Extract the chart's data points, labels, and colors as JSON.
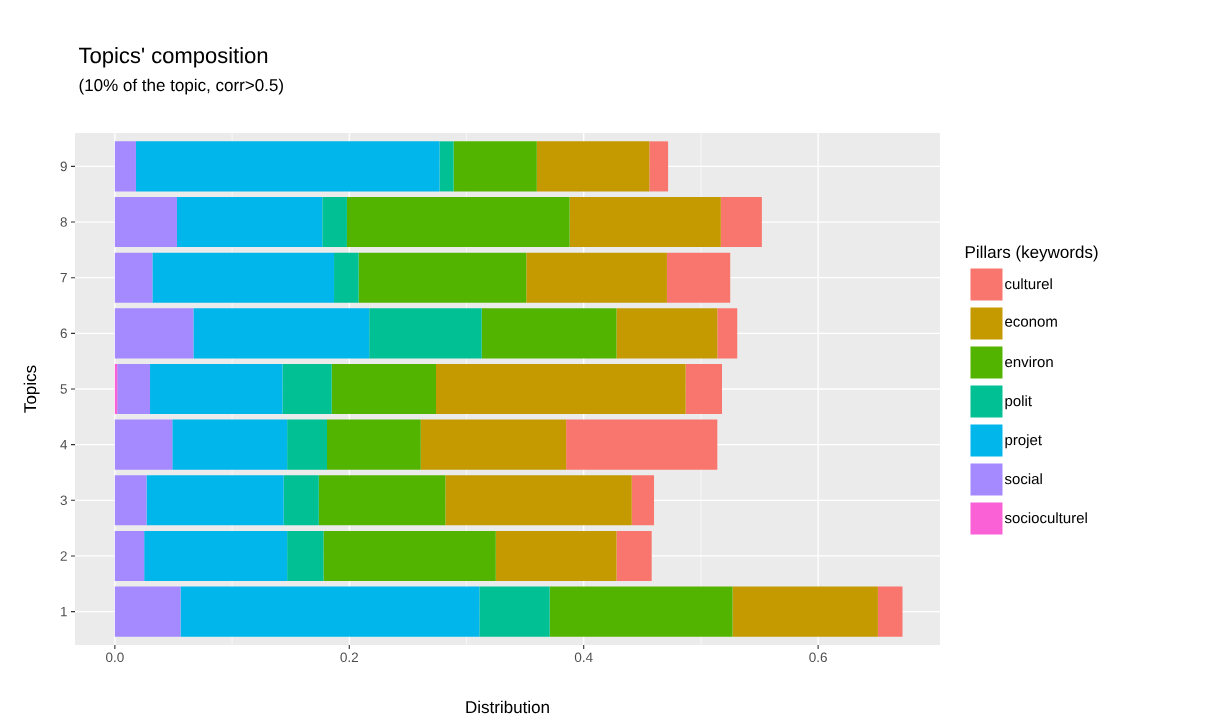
{
  "chart_data": {
    "type": "bar",
    "orientation": "horizontal",
    "stacked": true,
    "title": "Topics' composition",
    "subtitle": "(10% of the topic, corr>0.5)",
    "xlabel": "Distribution",
    "ylabel": "Topics",
    "legend_title": "Pillars (keywords)",
    "categories": [
      "9",
      "8",
      "7",
      "6",
      "5",
      "4",
      "3",
      "2",
      "1"
    ],
    "series": [
      {
        "name": "socioculturel",
        "color": "#fb61d7",
        "values": [
          0,
          0,
          0,
          0,
          0.002,
          0,
          0,
          0,
          0
        ]
      },
      {
        "name": "social",
        "color": "#a58aff",
        "values": [
          0.018,
          0.053,
          0.032,
          0.067,
          0.028,
          0.049,
          0.027,
          0.025,
          0.056
        ]
      },
      {
        "name": "projet",
        "color": "#00b6eb",
        "values": [
          0.259,
          0.124,
          0.155,
          0.15,
          0.113,
          0.098,
          0.117,
          0.122,
          0.255
        ]
      },
      {
        "name": "polit",
        "color": "#00c094",
        "values": [
          0.012,
          0.021,
          0.021,
          0.096,
          0.042,
          0.034,
          0.03,
          0.031,
          0.06
        ]
      },
      {
        "name": "environ",
        "color": "#53b400",
        "values": [
          0.071,
          0.19,
          0.143,
          0.115,
          0.089,
          0.08,
          0.108,
          0.147,
          0.156
        ]
      },
      {
        "name": "econom",
        "color": "#c49a00",
        "values": [
          0.096,
          0.129,
          0.12,
          0.086,
          0.213,
          0.124,
          0.159,
          0.103,
          0.124
        ]
      },
      {
        "name": "culturel",
        "color": "#f8766d",
        "values": [
          0.016,
          0.035,
          0.054,
          0.017,
          0.031,
          0.129,
          0.019,
          0.03,
          0.021
        ]
      }
    ],
    "xlim": [
      -0.034,
      0.704
    ],
    "xticks": [
      {
        "value": 0,
        "label": "0.0"
      },
      {
        "value": 0.2,
        "label": "0.2"
      },
      {
        "value": 0.4,
        "label": "0.4"
      },
      {
        "value": 0.6,
        "label": "0.6"
      }
    ],
    "grid": true,
    "legend": "right"
  }
}
